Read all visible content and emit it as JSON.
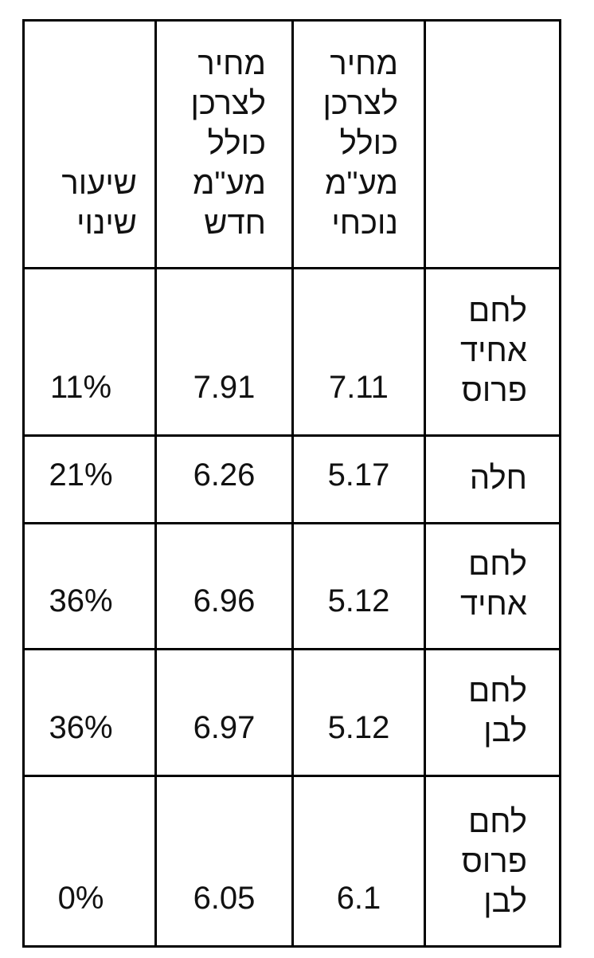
{
  "table": {
    "header": [
      "",
      "מחיר לצרכן כולל מע\"מ נוכחי",
      "מחיר לצרכן כולל מע\"מ חדש",
      "שיעור שינוי"
    ],
    "rows": [
      [
        "לחם אחיד פרוס",
        "7.11",
        "7.91",
        "11%"
      ],
      [
        "חלה",
        "5.17",
        "6.26",
        "21%"
      ],
      [
        "לחם אחיד",
        "5.12",
        "6.96",
        "36%"
      ],
      [
        "לחם לבן",
        "5.12",
        "6.97",
        "36%"
      ],
      [
        "לחם פרוס לבן",
        "6.1",
        "6.05",
        "0%"
      ]
    ]
  }
}
